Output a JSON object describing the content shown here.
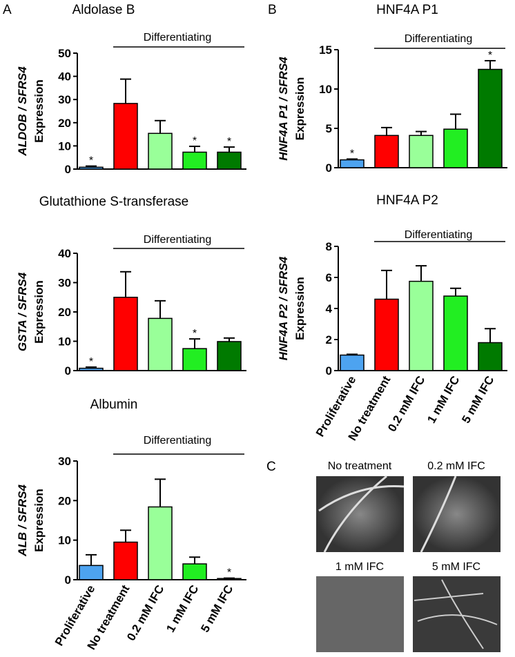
{
  "panel_labels": [
    "A",
    "B",
    "C"
  ],
  "chart_data": [
    {
      "type": "bar",
      "title": "Aldolase B",
      "ylabel": [
        "ALDOB / SFRS4",
        "Expression"
      ],
      "categories": [
        null,
        null,
        null,
        null,
        null
      ],
      "values": [
        0.8,
        28.3,
        15.4,
        7.3,
        7.3
      ],
      "errors": [
        0.5,
        10.5,
        5.5,
        2.5,
        2.2
      ],
      "star_labels": [
        "*",
        null,
        null,
        "*",
        "*"
      ],
      "colors": [
        "#4da3f0",
        "#ff0000",
        "#99ff99",
        "#22ee22",
        "#007a00"
      ],
      "bracket": "Differentiating",
      "ylim": [
        0,
        50
      ],
      "yticks": [
        0,
        10,
        20,
        30,
        40,
        50
      ]
    },
    {
      "type": "bar",
      "title": "HNF4A P1",
      "ylabel": [
        "HNF4A P1 / SFRS4",
        "Expression"
      ],
      "categories": [
        null,
        null,
        null,
        null,
        null
      ],
      "values": [
        1.0,
        4.1,
        4.1,
        4.9,
        12.5
      ],
      "errors": [
        0.1,
        1.0,
        0.5,
        1.9,
        1.1
      ],
      "star_labels": [
        "*",
        null,
        null,
        null,
        "*"
      ],
      "colors": [
        "#4da3f0",
        "#ff0000",
        "#99ff99",
        "#22ee22",
        "#007a00"
      ],
      "bracket": "Differentiating",
      "ylim": [
        0,
        15
      ],
      "yticks": [
        0,
        5,
        10,
        15
      ]
    },
    {
      "type": "bar",
      "title": "Glutathione S-transferase",
      "ylabel": [
        "GSTA / SFRS4",
        "Expression"
      ],
      "categories": [
        null,
        null,
        null,
        null,
        null
      ],
      "values": [
        0.8,
        25.0,
        17.8,
        7.5,
        9.9
      ],
      "errors": [
        0.4,
        8.7,
        6.0,
        3.3,
        1.2
      ],
      "star_labels": [
        "*",
        null,
        null,
        "*",
        null
      ],
      "colors": [
        "#4da3f0",
        "#ff0000",
        "#99ff99",
        "#22ee22",
        "#007a00"
      ],
      "bracket": "Differentiating",
      "ylim": [
        0,
        40
      ],
      "yticks": [
        0,
        10,
        20,
        30,
        40
      ]
    },
    {
      "type": "bar",
      "title": "HNF4A P2",
      "ylabel": [
        "HNF4A P2 / SFRS4",
        "Expression"
      ],
      "categories": [
        "Proliferative",
        "No treatment",
        "0.2 mM IFC",
        "1 mM IFC",
        "5 mM IFC"
      ],
      "values": [
        1.0,
        4.6,
        5.75,
        4.8,
        1.8
      ],
      "errors": [
        0.05,
        1.85,
        1.0,
        0.5,
        0.9
      ],
      "star_labels": [
        null,
        null,
        null,
        null,
        null
      ],
      "colors": [
        "#4da3f0",
        "#ff0000",
        "#99ff99",
        "#22ee22",
        "#007a00"
      ],
      "bracket": "Differentiating",
      "ylim": [
        0,
        8
      ],
      "yticks": [
        0,
        2,
        4,
        6,
        8
      ]
    },
    {
      "type": "bar",
      "title": "Albumin",
      "ylabel": [
        "ALB / SFRS4",
        "Expression"
      ],
      "categories": [
        "Proliferative",
        "No treatment",
        "0.2 mM IFC",
        "1 mM IFC",
        "5 mM IFC"
      ],
      "values": [
        3.6,
        9.5,
        18.4,
        4.0,
        0.3
      ],
      "errors": [
        2.7,
        3.0,
        7.0,
        1.7,
        0.1
      ],
      "star_labels": [
        null,
        null,
        null,
        null,
        "*"
      ],
      "colors": [
        "#4da3f0",
        "#ff0000",
        "#99ff99",
        "#22ee22",
        "#007a00"
      ],
      "bracket": "Differentiating",
      "ylim": [
        0,
        30
      ],
      "yticks": [
        0,
        10,
        20,
        30
      ]
    }
  ],
  "micrographs": [
    "No treatment",
    "0.2 mM IFC",
    "1 mM IFC",
    "5 mM IFC"
  ]
}
